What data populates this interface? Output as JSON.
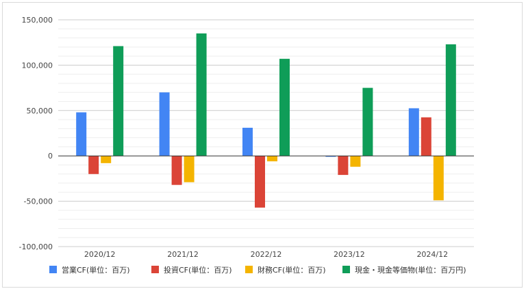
{
  "chart_data": {
    "type": "bar",
    "title": "",
    "xlabel": "",
    "ylabel": "",
    "categories": [
      "2020/12",
      "2021/12",
      "2022/12",
      "2023/12",
      "2024/12"
    ],
    "ylim": [
      -100000,
      150000
    ],
    "yticks": [
      150000,
      100000,
      50000,
      0,
      -50000,
      -100000
    ],
    "ytick_labels": [
      "150,000",
      "100,000",
      "50,000",
      "0",
      "-50,000",
      "-100,000"
    ],
    "minor_gridlines": true,
    "legend_position": "bottom",
    "series": [
      {
        "name": "営業CF(単位：百万)",
        "color": "#4285f4",
        "values": [
          48000,
          70000,
          31000,
          -1000,
          52500
        ]
      },
      {
        "name": "投資CF(単位：百万)",
        "color": "#db4437",
        "values": [
          -20000,
          -32000,
          -57000,
          -21000,
          42500
        ]
      },
      {
        "name": "財務CF(単位：百万)",
        "color": "#f4b400",
        "values": [
          -8000,
          -29000,
          -6000,
          -12000,
          -49000
        ]
      },
      {
        "name": "現金・現金等価物(単位：百万円)",
        "color": "#0f9d58",
        "values": [
          121000,
          135000,
          107000,
          75000,
          123000
        ]
      }
    ]
  }
}
